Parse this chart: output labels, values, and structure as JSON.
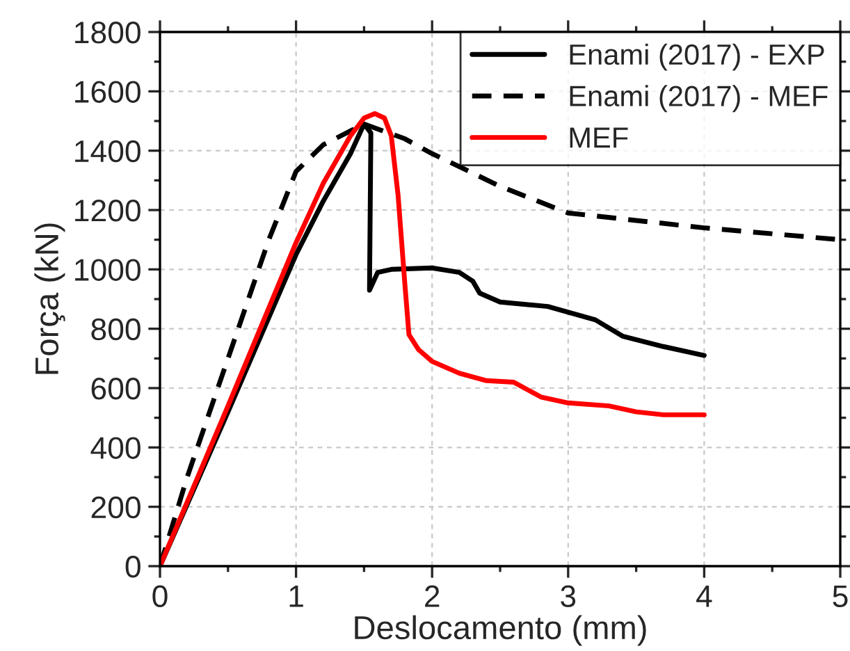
{
  "chart_data": {
    "type": "line",
    "xlabel": "Deslocamento (mm)",
    "ylabel": "Força (kN)",
    "xlim": [
      0,
      5
    ],
    "xticks": [
      0,
      1,
      2,
      3,
      4,
      5
    ],
    "ylim": [
      0,
      1800
    ],
    "yticks": [
      0,
      200,
      400,
      600,
      800,
      1000,
      1200,
      1400,
      1600,
      1800
    ],
    "grid": true,
    "legend": "top right",
    "series": [
      {
        "name": "Enami (2017) - EXP",
        "color": "#000000",
        "line_style": "solid",
        "x": [
          0,
          0.5,
          1,
          1.2,
          1.4,
          1.5,
          1.55,
          1.54,
          1.6,
          1.7,
          2,
          2.2,
          2.3,
          2.35,
          2.5,
          2.85,
          3.2,
          3.4,
          3.7,
          4
        ],
        "values": [
          0,
          520,
          1050,
          1230,
          1390,
          1490,
          1460,
          930,
          990,
          1000,
          1005,
          990,
          960,
          920,
          890,
          875,
          830,
          775,
          740,
          710
        ]
      },
      {
        "name": "Enami (2017) - MEF",
        "color": "#000000",
        "line_style": "dashed",
        "x": [
          0,
          0.2,
          0.5,
          0.8,
          1,
          1.2,
          1.5,
          1.8,
          2,
          2.5,
          3,
          3.5,
          4,
          5
        ],
        "values": [
          0,
          300,
          700,
          1100,
          1330,
          1420,
          1490,
          1440,
          1390,
          1280,
          1190,
          1165,
          1140,
          1100
        ]
      },
      {
        "name": "MEF",
        "color": "#ff0000",
        "line_style": "solid",
        "x": [
          0,
          0.5,
          1,
          1.2,
          1.4,
          1.5,
          1.58,
          1.65,
          1.7,
          1.75,
          1.8,
          1.83,
          1.9,
          2,
          2.2,
          2.4,
          2.6,
          2.8,
          3,
          3.3,
          3.5,
          3.7,
          4
        ],
        "values": [
          0,
          540,
          1090,
          1290,
          1450,
          1510,
          1525,
          1510,
          1450,
          1250,
          950,
          780,
          730,
          690,
          650,
          625,
          620,
          570,
          550,
          540,
          520,
          510,
          510
        ]
      }
    ]
  }
}
